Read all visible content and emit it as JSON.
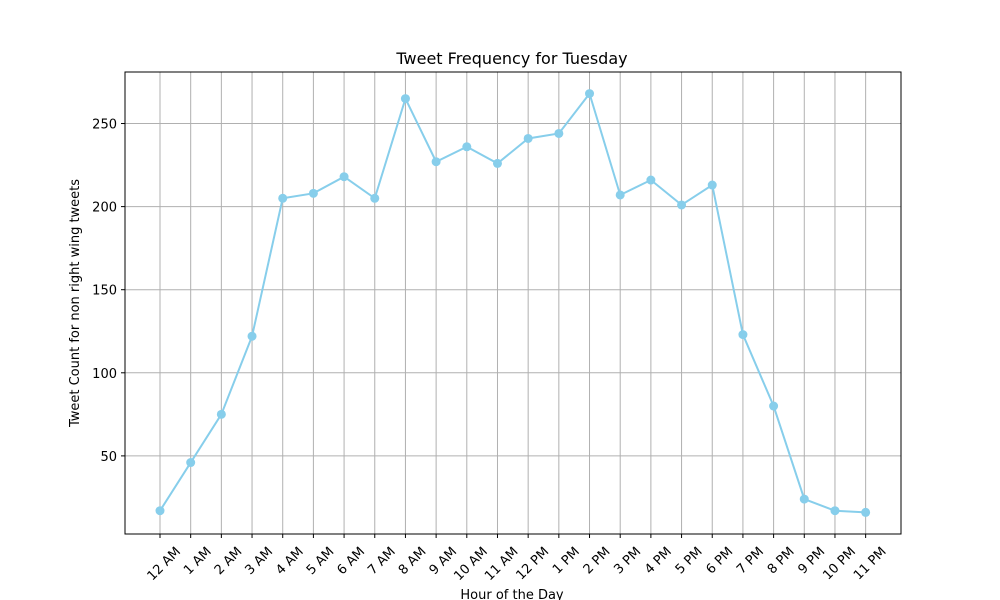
{
  "chart_data": {
    "type": "line",
    "title": "Tweet Frequency for Tuesday",
    "xlabel": "Hour of the Day",
    "ylabel": "Tweet Count for non right wing tweets",
    "categories": [
      "12 AM",
      "1 AM",
      "2 AM",
      "3 AM",
      "4 AM",
      "5 AM",
      "6 AM",
      "7 AM",
      "8 AM",
      "9 AM",
      "10 AM",
      "11 AM",
      "12 PM",
      "1 PM",
      "2 PM",
      "3 PM",
      "4 PM",
      "5 PM",
      "6 PM",
      "7 PM",
      "8 PM",
      "9 PM",
      "10 PM",
      "11 PM"
    ],
    "values": [
      17,
      46,
      75,
      122,
      205,
      208,
      218,
      205,
      265,
      227,
      236,
      226,
      241,
      244,
      268,
      207,
      216,
      201,
      213,
      123,
      80,
      24,
      17,
      16
    ],
    "yticks": [
      50,
      100,
      150,
      200,
      250
    ],
    "ylim": [
      3,
      281
    ],
    "grid": true,
    "line_color": "#87CEEB",
    "marker": "circle"
  }
}
